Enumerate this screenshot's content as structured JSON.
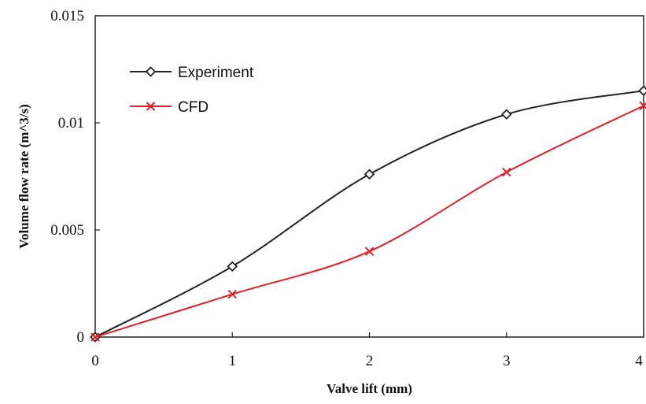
{
  "chart_data": {
    "type": "line",
    "title": "",
    "xlabel": "Valve lift (mm)",
    "ylabel": "Volume flow rate (m^3/s)",
    "xlim": [
      0,
      4
    ],
    "ylim": [
      0,
      0.015
    ],
    "x_ticks": [
      "0",
      "1",
      "2",
      "3",
      "4"
    ],
    "y_ticks": [
      "0",
      "0.005",
      "0.01",
      "0.015"
    ],
    "grid": false,
    "legend_position": "top-left",
    "smooth_lines": true,
    "series": [
      {
        "name": "Experiment",
        "marker": "diamond",
        "color": "#222222",
        "x": [
          0,
          1,
          2,
          3,
          4
        ],
        "y": [
          0,
          0.0033,
          0.0076,
          0.0104,
          0.0115
        ]
      },
      {
        "name": "CFD",
        "marker": "x",
        "color": "#e0202a",
        "x": [
          0,
          1,
          2,
          3,
          4
        ],
        "y": [
          0,
          0.002,
          0.004,
          0.0077,
          0.0108
        ]
      }
    ]
  }
}
